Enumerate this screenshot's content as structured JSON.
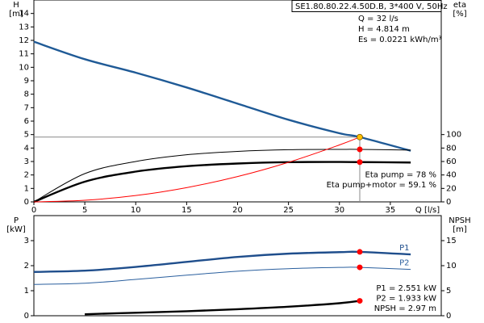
{
  "chart_data": [
    {
      "type": "line",
      "title": "SE1.80.80.22.4.50D.B, 3*400 V, 50Hz",
      "y_label": [
        "H",
        "[m]"
      ],
      "y2_label": [
        "eta",
        "[%]"
      ],
      "x_label": "Q [l/s]",
      "x": [
        0,
        5,
        10,
        15,
        20,
        25,
        30,
        32,
        37
      ],
      "xlim": [
        0,
        40
      ],
      "xticks": [
        0,
        5,
        10,
        15,
        20,
        25,
        30,
        35
      ],
      "ylim": [
        0,
        15
      ],
      "yticks": [
        0,
        1,
        2,
        3,
        4,
        5,
        6,
        7,
        8,
        9,
        10,
        11,
        12,
        13,
        14
      ],
      "y2lim": [
        0,
        300
      ],
      "y2ticks": [
        0,
        20,
        40,
        60,
        80,
        100
      ],
      "series": [
        {
          "color": "#1f5a96",
          "style": "thick",
          "values": [
            11.9,
            10.6,
            9.6,
            8.5,
            7.3,
            6.1,
            5.1,
            4.814,
            3.8
          ]
        },
        {
          "color": "#000000",
          "style": "thin",
          "axis": "y2",
          "values": [
            0,
            42,
            60,
            70,
            75,
            77.5,
            78,
            78,
            77
          ]
        },
        {
          "color": "#000000",
          "style": "thick",
          "axis": "y2",
          "values": [
            0,
            30,
            45,
            53,
            57,
            59,
            59.3,
            59.1,
            58.5
          ]
        },
        {
          "color": "#ff0000",
          "style": "thin",
          "values": [
            0,
            0.12,
            0.47,
            1.06,
            1.88,
            2.94,
            4.23,
            4.814,
            null
          ]
        }
      ],
      "markers": [
        {
          "x": 32,
          "y": 4.814,
          "color": "#ffc000"
        },
        {
          "x": 32,
          "y": 78,
          "axis": "y2",
          "color": "#ff0000"
        },
        {
          "x": 32,
          "y": 59.1,
          "axis": "y2",
          "color": "#ff0000"
        }
      ],
      "annotations": [
        "Q = 32 l/s",
        "H = 4.814 m",
        "Es = 0.0221 kWh/m³"
      ],
      "readouts": [
        "Eta pump = 78 %",
        "Eta pump+motor = 59.1 %"
      ]
    },
    {
      "type": "line",
      "y_label": [
        "P",
        "[kW]"
      ],
      "y2_label": [
        "NPSH",
        "[m]"
      ],
      "x": [
        0,
        5,
        10,
        15,
        20,
        25,
        30,
        32,
        37
      ],
      "xlim": [
        0,
        40
      ],
      "ylim": [
        0,
        4
      ],
      "yticks": [
        0,
        1,
        2,
        3
      ],
      "y2lim": [
        0,
        20
      ],
      "y2ticks": [
        0,
        5,
        10,
        15
      ],
      "series": [
        {
          "name": "P1",
          "color": "#1f4e8c",
          "style": "thick",
          "values": [
            1.75,
            1.8,
            1.95,
            2.15,
            2.35,
            2.48,
            2.54,
            2.551,
            2.45
          ]
        },
        {
          "name": "P2",
          "color": "#2a5f9e",
          "style": "thin",
          "values": [
            1.25,
            1.3,
            1.45,
            1.62,
            1.78,
            1.88,
            1.93,
            1.933,
            1.85
          ]
        },
        {
          "color": "#000000",
          "style": "thick",
          "axis": "y2",
          "values": [
            null,
            0.3,
            0.6,
            0.9,
            1.3,
            1.8,
            2.5,
            2.97,
            null
          ]
        }
      ],
      "markers": [
        {
          "x": 32,
          "y": 2.551,
          "color": "#ff0000"
        },
        {
          "x": 32,
          "y": 1.933,
          "color": "#ff0000"
        },
        {
          "x": 32,
          "y": 2.97,
          "axis": "y2",
          "color": "#ff0000"
        }
      ],
      "readouts": [
        "P1 = 2.551 kW",
        "P2 = 1.933 kW",
        "NPSH = 2.97 m"
      ]
    }
  ]
}
